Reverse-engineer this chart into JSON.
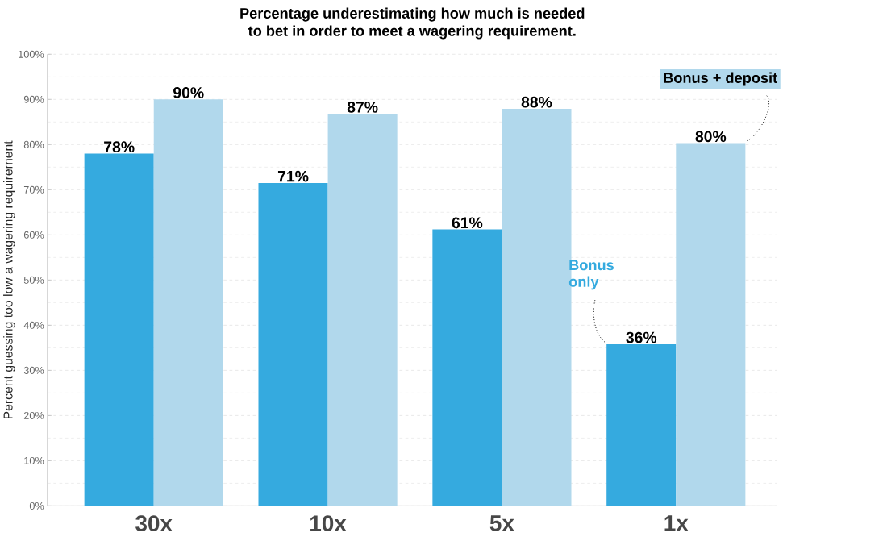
{
  "chart_data": {
    "type": "bar",
    "title": "Percentage underestimating how much is needed\nto bet in order to meet a wagering requirement.",
    "ylabel": "Percent guessing too low a wagering requirement",
    "categories": [
      "30x",
      "10x",
      "5x",
      "1x"
    ],
    "series": [
      {
        "name": "Bonus only",
        "color": "#35aadf",
        "values": [
          78,
          71.5,
          61.2,
          35.8
        ],
        "value_labels": [
          "78%",
          "71%",
          "61%",
          "36%"
        ]
      },
      {
        "name": "Bonus + deposit",
        "color": "#b1d8ec",
        "values": [
          90,
          86.8,
          87.9,
          80.3
        ],
        "value_labels": [
          "90%",
          "87%",
          "88%",
          "80%"
        ]
      }
    ],
    "ylim": [
      0,
      100
    ],
    "yticks": [
      {
        "value": 0,
        "label": "0%"
      },
      {
        "value": 10,
        "label": "10%"
      },
      {
        "value": 20,
        "label": "20%"
      },
      {
        "value": 30,
        "label": "30%"
      },
      {
        "value": 40,
        "label": "40%"
      },
      {
        "value": 50,
        "label": "50%"
      },
      {
        "value": 60,
        "label": "60%"
      },
      {
        "value": 70,
        "label": "70%"
      },
      {
        "value": 80,
        "label": "80%"
      },
      {
        "value": 90,
        "label": "90%"
      },
      {
        "value": 100,
        "label": "100%"
      }
    ],
    "grid": "y"
  }
}
